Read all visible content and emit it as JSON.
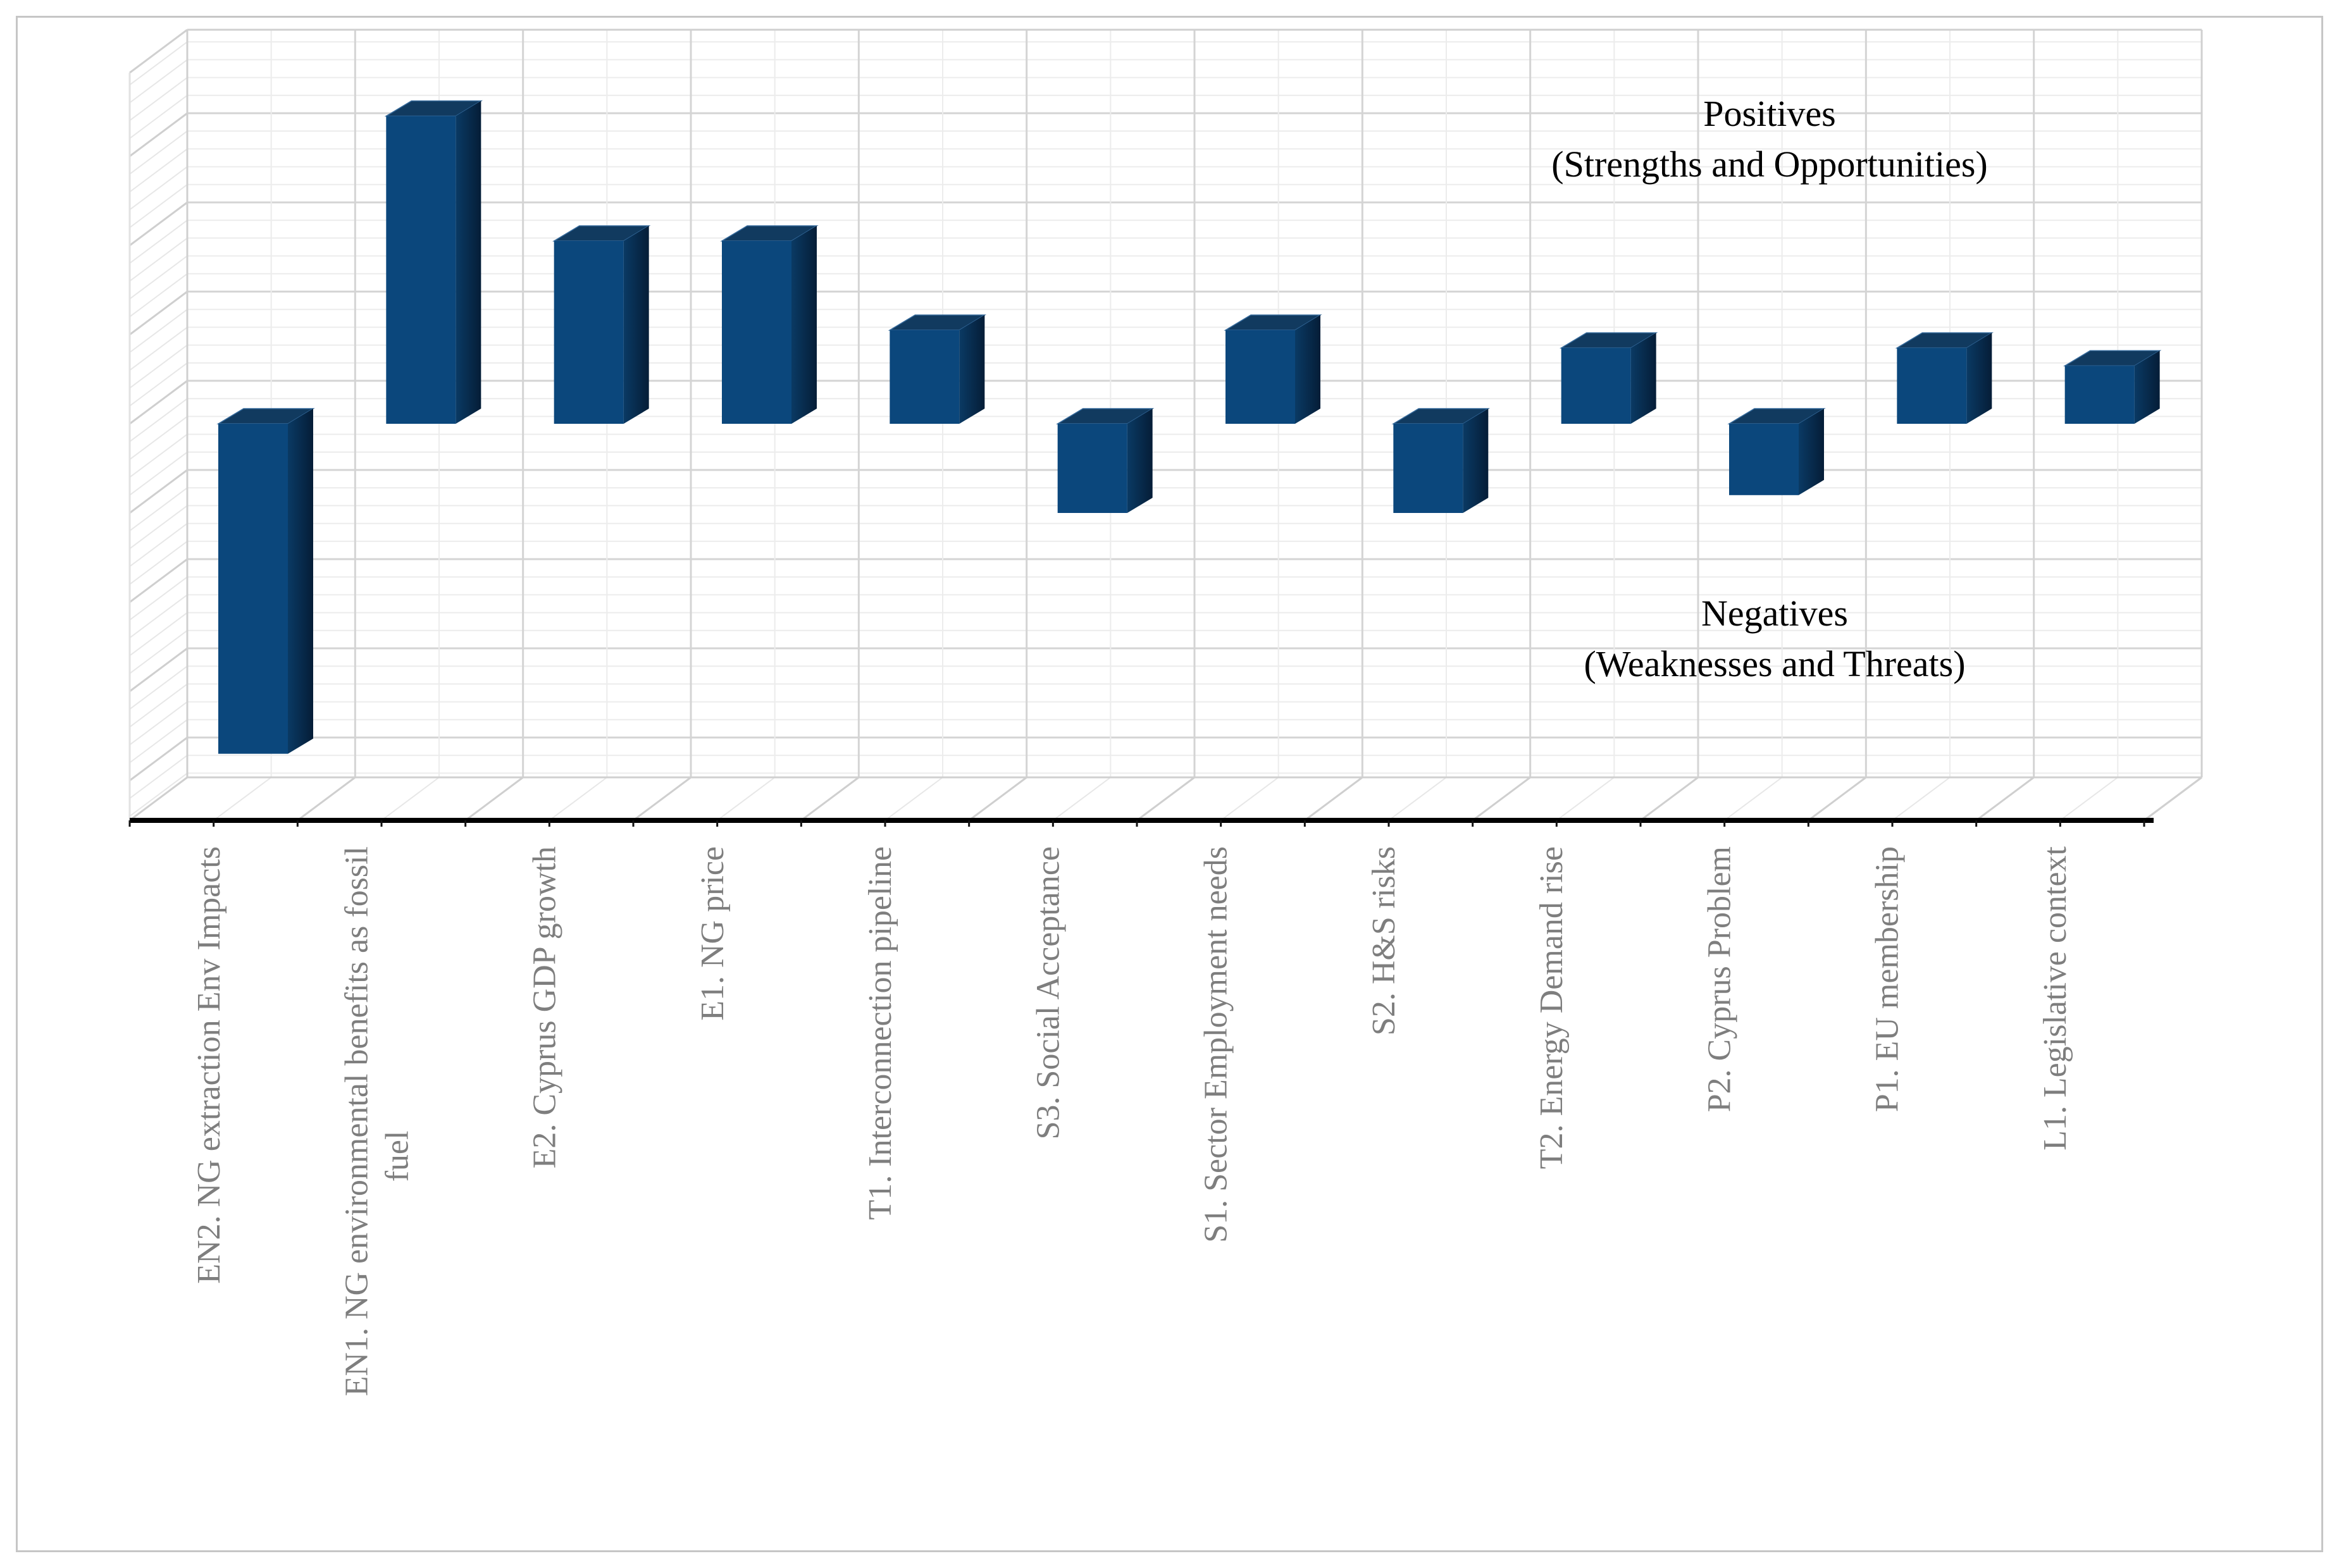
{
  "figure": {
    "background_color": "#ffffff",
    "frame_border_color": "#c6c6c6"
  },
  "chart_data": {
    "type": "bar",
    "style": "3d-perspective-columns",
    "title": "",
    "xlabel": "",
    "ylabel": "",
    "categories": [
      "EN2. NG extraction Env Impacts",
      "EN1. NG environmental benefits as fossil fuel",
      "E2. Cyprus GDP growth",
      "E1. NG price",
      "T1. Interconnection pipeline",
      "S3. Social Acceptance",
      "S1. Sector Employment needs",
      "S2. H&S risks",
      "T2. Energy Demand rise",
      "P2. Cyprus Problem",
      "P1. EU membership",
      "L1. Legislative context"
    ],
    "category_label_lines": [
      [
        "EN2. NG extraction Env Impacts"
      ],
      [
        "EN1. NG environmental benefits as fossil",
        "fuel"
      ],
      [
        "E2. Cyprus GDP growth"
      ],
      [
        "E1. NG price"
      ],
      [
        "T1. Interconnection pipeline"
      ],
      [
        "S3. Social Acceptance"
      ],
      [
        "S1. Sector Employment needs"
      ],
      [
        "S2. H&S risks"
      ],
      [
        "T2. Energy Demand rise"
      ],
      [
        "P2. Cyprus Problem"
      ],
      [
        "P1. EU membership"
      ],
      [
        "L1. Legislative context"
      ]
    ],
    "values": [
      -3.7,
      3.45,
      2.05,
      2.05,
      1.05,
      -1.0,
      1.05,
      -1.0,
      0.85,
      -0.8,
      0.85,
      0.65
    ],
    "value_units": "relative score (no y-axis tick labels shown)",
    "ylim": [
      -4.45,
      3.65
    ],
    "grid": {
      "horizontal_major": true,
      "horizontal_minor": true,
      "vertical_major": true,
      "vertical_minor": true,
      "y_tick_labels": false
    },
    "legend": "none",
    "bar_front_color": "#0b477c",
    "bar_top_color": "#113a5f",
    "bar_side_color_near": "#0a3a64",
    "bar_side_color_far": "#051d37",
    "axis_line_color": "#000000",
    "gridline_major_color": "#d4d4d4",
    "gridline_minor_color": "#ececec",
    "category_label_color": "#7e7e7e",
    "annotations": {
      "positives": {
        "line1": "Positives",
        "line2": "(Strengths and Opportunities)",
        "color": "#000000"
      },
      "negatives": {
        "line1": "Negatives",
        "line2": "(Weaknesses and Threats)",
        "color": "#000000"
      }
    }
  }
}
